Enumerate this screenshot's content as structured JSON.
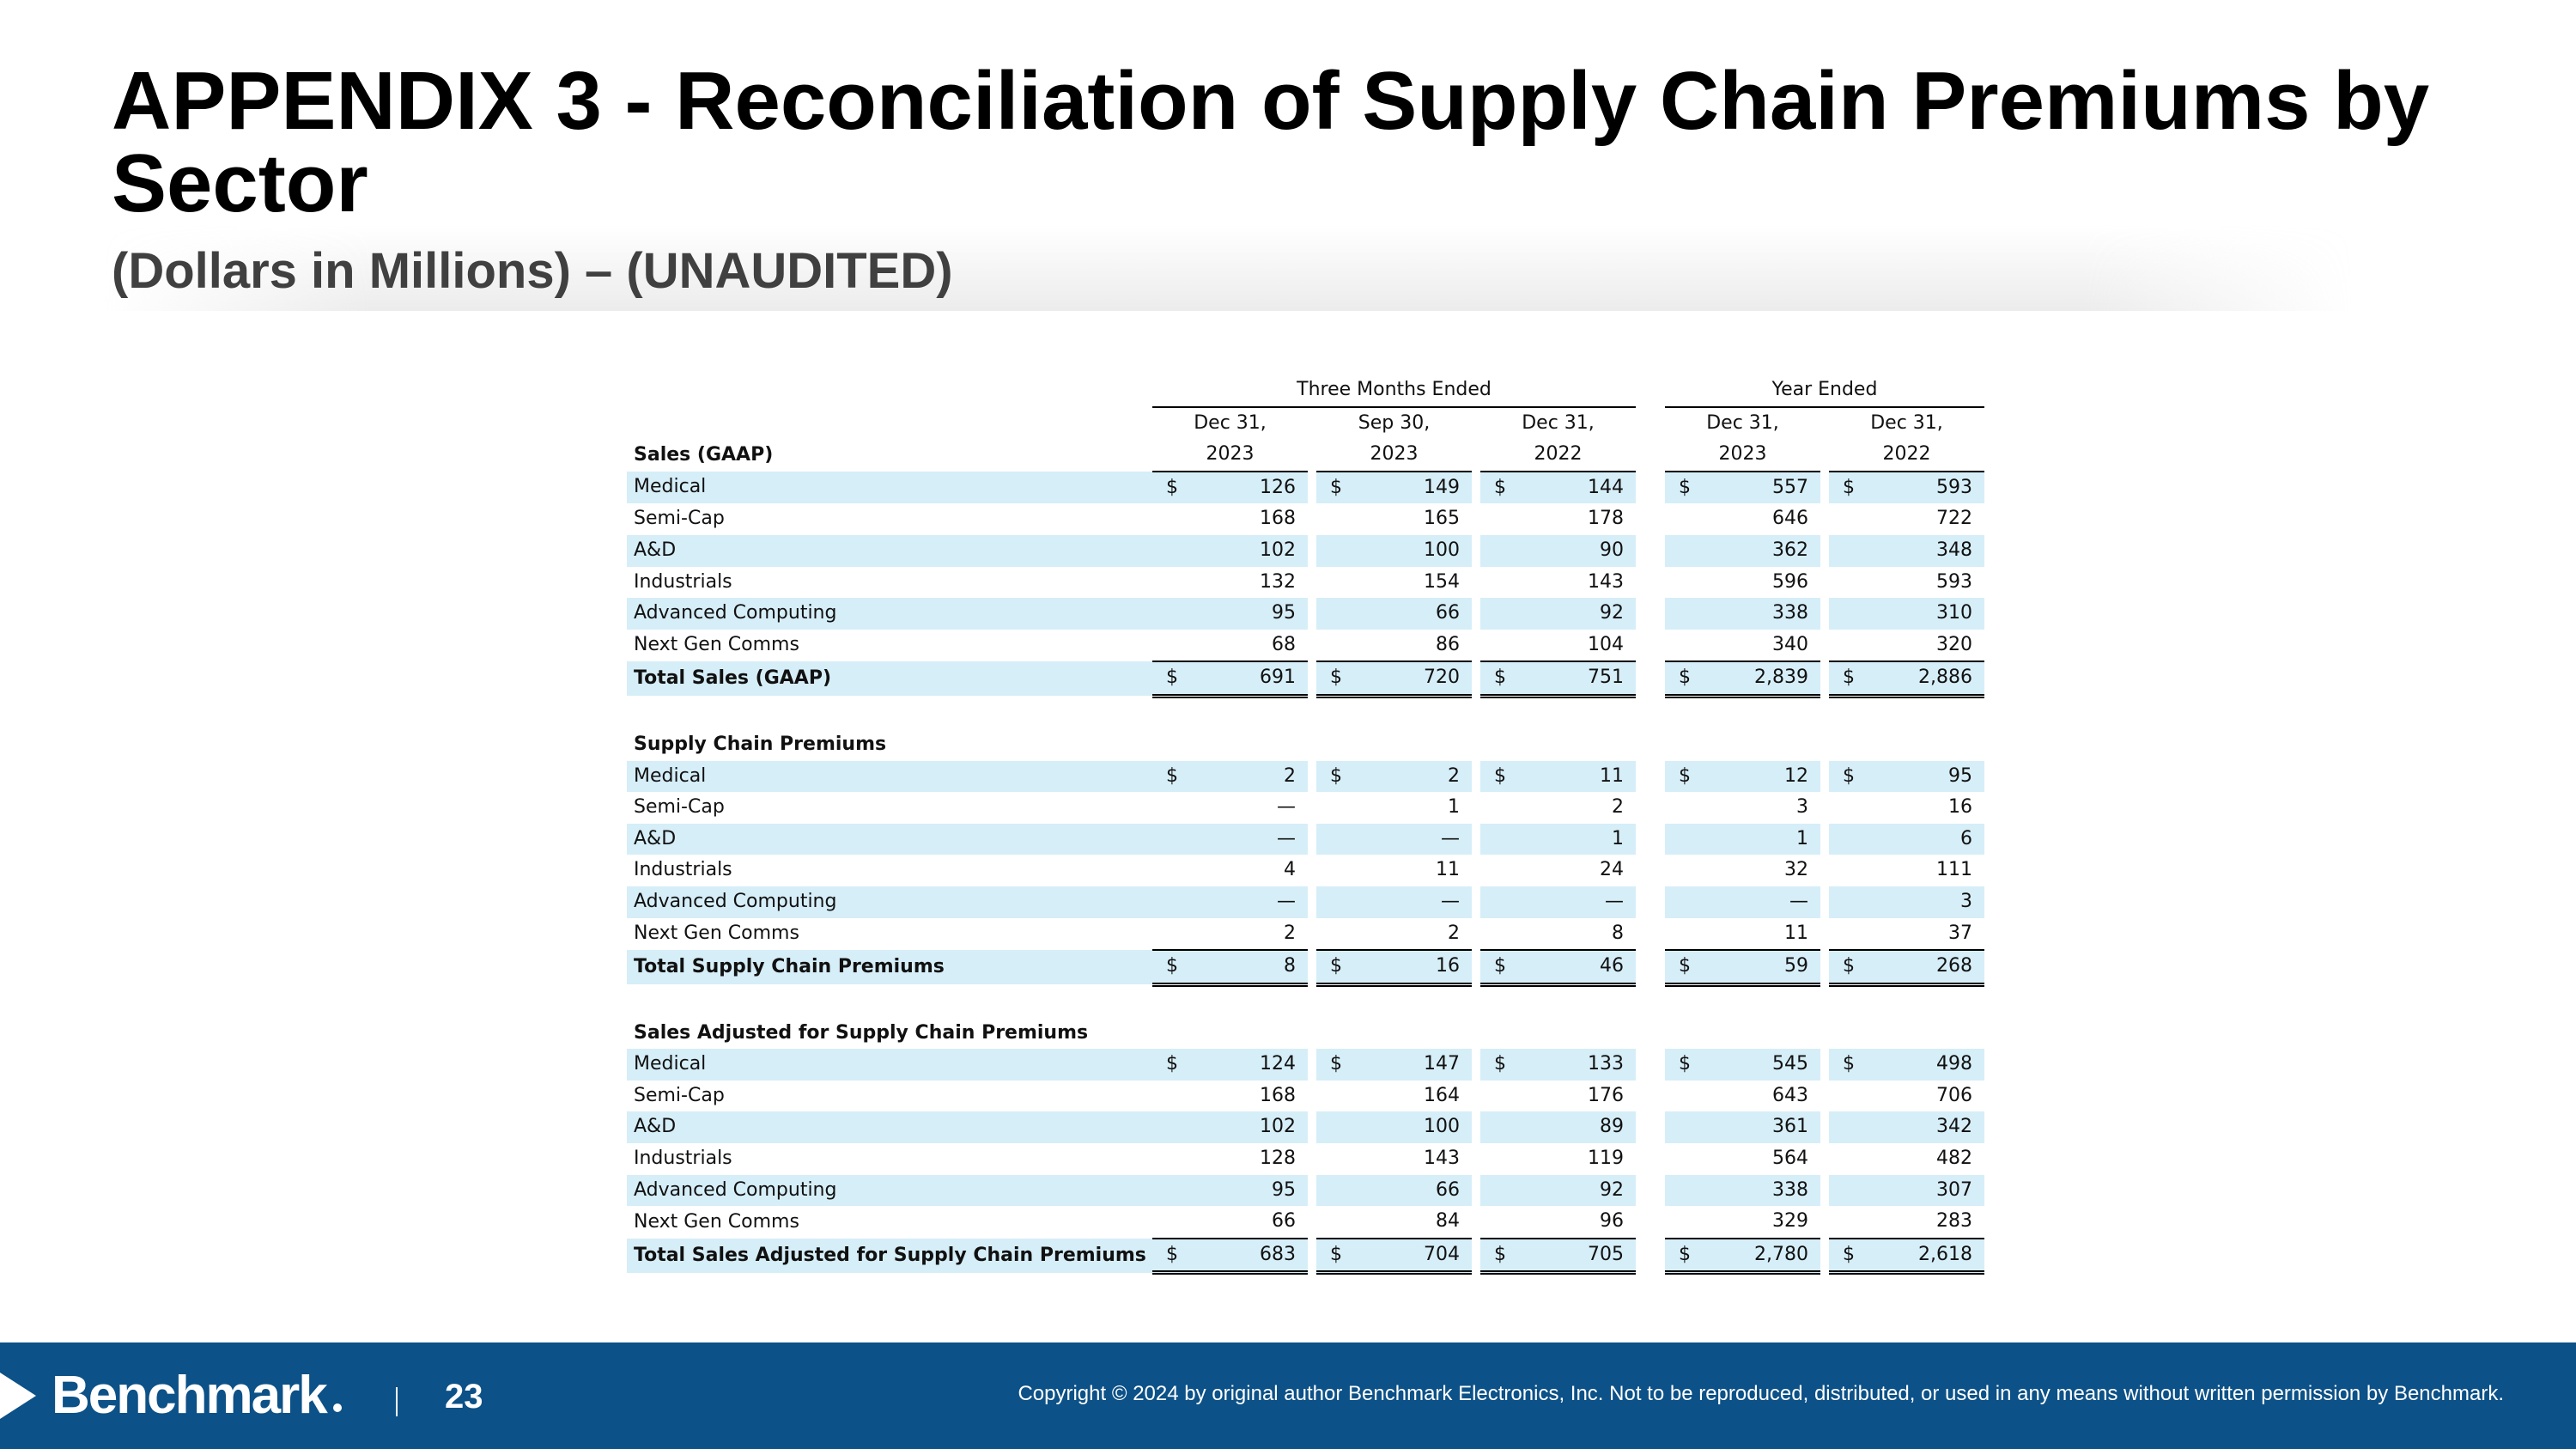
{
  "slide": {
    "title": "APPENDIX 3 - Reconciliation of Supply Chain Premiums by Sector",
    "subtitle": "(Dollars in Millions) – (UNAUDITED)"
  },
  "table": {
    "group_headers": {
      "three_months": "Three Months Ended",
      "year": "Year Ended"
    },
    "columns": [
      {
        "line1": "Dec 31,",
        "line2": "2023"
      },
      {
        "line1": "Sep 30,",
        "line2": "2023"
      },
      {
        "line1": "Dec 31,",
        "line2": "2022"
      },
      {
        "line1": "Dec 31,",
        "line2": "2023"
      },
      {
        "line1": "Dec 31,",
        "line2": "2022"
      }
    ],
    "currency_symbol": "$",
    "sections": [
      {
        "title": "Sales (GAAP)",
        "rows": [
          {
            "label": "Medical",
            "values": [
              "126",
              "149",
              "144",
              "557",
              "593"
            ]
          },
          {
            "label": "Semi-Cap",
            "values": [
              "168",
              "165",
              "178",
              "646",
              "722"
            ]
          },
          {
            "label": "A&D",
            "values": [
              "102",
              "100",
              "90",
              "362",
              "348"
            ]
          },
          {
            "label": "Industrials",
            "values": [
              "132",
              "154",
              "143",
              "596",
              "593"
            ]
          },
          {
            "label": "Advanced Computing",
            "values": [
              "95",
              "66",
              "92",
              "338",
              "310"
            ]
          },
          {
            "label": "Next Gen Comms",
            "values": [
              "68",
              "86",
              "104",
              "340",
              "320"
            ]
          }
        ],
        "total": {
          "label": "Total Sales (GAAP)",
          "values": [
            "691",
            "720",
            "751",
            "2,839",
            "2,886"
          ]
        }
      },
      {
        "title": "Supply Chain Premiums",
        "rows": [
          {
            "label": "Medical",
            "values": [
              "2",
              "2",
              "11",
              "12",
              "95"
            ]
          },
          {
            "label": "Semi-Cap",
            "values": [
              "—",
              "1",
              "2",
              "3",
              "16"
            ]
          },
          {
            "label": "A&D",
            "values": [
              "—",
              "—",
              "1",
              "1",
              "6"
            ]
          },
          {
            "label": "Industrials",
            "values": [
              "4",
              "11",
              "24",
              "32",
              "111"
            ]
          },
          {
            "label": "Advanced Computing",
            "values": [
              "—",
              "—",
              "—",
              "—",
              "3"
            ]
          },
          {
            "label": "Next Gen Comms",
            "values": [
              "2",
              "2",
              "8",
              "11",
              "37"
            ]
          }
        ],
        "total": {
          "label": "Total Supply Chain Premiums",
          "values": [
            "8",
            "16",
            "46",
            "59",
            "268"
          ]
        }
      },
      {
        "title": "Sales Adjusted for Supply Chain Premiums",
        "rows": [
          {
            "label": "Medical",
            "values": [
              "124",
              "147",
              "133",
              "545",
              "498"
            ]
          },
          {
            "label": "Semi-Cap",
            "values": [
              "168",
              "164",
              "176",
              "643",
              "706"
            ]
          },
          {
            "label": "A&D",
            "values": [
              "102",
              "100",
              "89",
              "361",
              "342"
            ]
          },
          {
            "label": "Industrials",
            "values": [
              "128",
              "143",
              "119",
              "564",
              "482"
            ]
          },
          {
            "label": "Advanced Computing",
            "values": [
              "95",
              "66",
              "92",
              "338",
              "307"
            ]
          },
          {
            "label": "Next Gen Comms",
            "values": [
              "66",
              "84",
              "96",
              "329",
              "283"
            ]
          }
        ],
        "total": {
          "label": "Total Sales Adjusted for Supply Chain Premiums",
          "values": [
            "683",
            "704",
            "705",
            "2,780",
            "2,618"
          ]
        }
      }
    ]
  },
  "footer": {
    "brand": "Benchmark",
    "page_number": "23",
    "copyright": "Copyright © 2024 by original author Benchmark Electronics, Inc. Not to be reproduced, distributed, or used in any means without written permission by Benchmark.",
    "background_color": "#0c5187"
  },
  "colors": {
    "row_shade": "#d6eef8",
    "subtitle_text": "#404040"
  }
}
